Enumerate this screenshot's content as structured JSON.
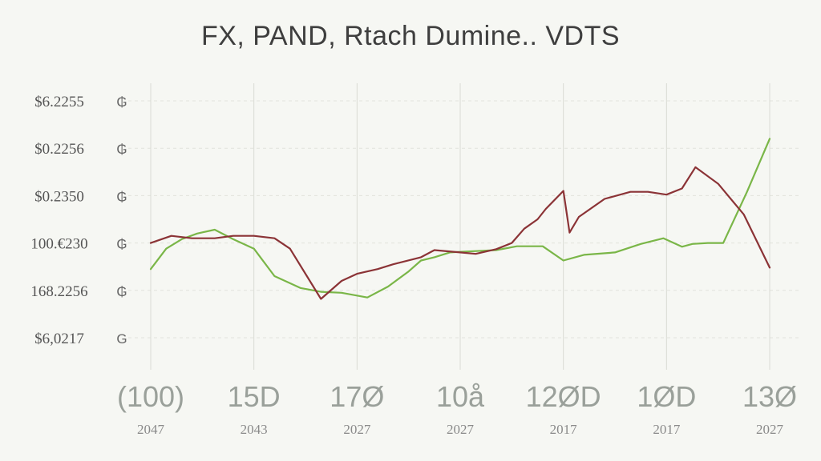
{
  "chart_data": {
    "type": "line",
    "title": "FX, PAND, Rtach Dumine.. VDTS",
    "xlabel": "",
    "ylabel": "",
    "y_tick_labels": [
      "$6.2255",
      "$0.2256",
      "$0.2350",
      "100.€230",
      "168.2256",
      "$6,0217"
    ],
    "y_tick_marks": [
      "₲",
      "₲",
      "₲",
      "₲",
      "₲",
      "G"
    ],
    "x_tick_labels": [
      "(100)",
      "15D",
      "17Ø",
      "10å",
      "12ØD",
      "1ØD",
      "13Ø"
    ],
    "x_tick_sublabels": [
      "2047",
      "2043",
      "2027",
      "2027",
      "2017",
      "2017",
      "2027"
    ],
    "ylim": [
      0,
      5
    ],
    "xlim": [
      0,
      6
    ],
    "grid": true,
    "legend": "none",
    "series": [
      {
        "color": "#7ab648",
        "x": [
          0,
          0.15,
          0.3,
          0.45,
          0.62,
          0.8,
          1.0,
          1.2,
          1.45,
          1.65,
          1.85,
          2.1,
          2.3,
          2.5,
          2.62,
          2.75,
          2.9,
          3.05,
          3.35,
          3.55,
          3.8,
          4.0,
          4.2,
          4.5,
          4.75,
          4.97,
          5.15,
          5.25,
          5.4,
          5.55,
          5.78,
          6.0
        ],
        "y": [
          1.45,
          1.88,
          2.08,
          2.2,
          2.28,
          2.08,
          1.88,
          1.3,
          1.05,
          0.97,
          0.95,
          0.85,
          1.08,
          1.4,
          1.63,
          1.7,
          1.8,
          1.82,
          1.85,
          1.93,
          1.93,
          1.63,
          1.75,
          1.8,
          1.98,
          2.1,
          1.92,
          1.98,
          2.0,
          2.0,
          3.08,
          4.2
        ]
      },
      {
        "color": "#8b3336",
        "x": [
          0,
          0.2,
          0.4,
          0.62,
          0.8,
          1.0,
          1.2,
          1.35,
          1.65,
          1.85,
          2.0,
          2.2,
          2.35,
          2.62,
          2.75,
          3.0,
          3.15,
          3.35,
          3.5,
          3.62,
          3.75,
          3.83,
          4.0,
          4.06,
          4.15,
          4.4,
          4.65,
          4.82,
          5.0,
          5.15,
          5.28,
          5.5,
          5.75,
          6.0
        ],
        "y": [
          2.0,
          2.15,
          2.1,
          2.1,
          2.15,
          2.15,
          2.1,
          1.88,
          0.82,
          1.2,
          1.35,
          1.45,
          1.55,
          1.7,
          1.85,
          1.8,
          1.77,
          1.87,
          2.0,
          2.3,
          2.5,
          2.72,
          3.1,
          2.22,
          2.55,
          2.93,
          3.08,
          3.08,
          3.02,
          3.15,
          3.6,
          3.25,
          2.6,
          1.48
        ]
      }
    ]
  }
}
